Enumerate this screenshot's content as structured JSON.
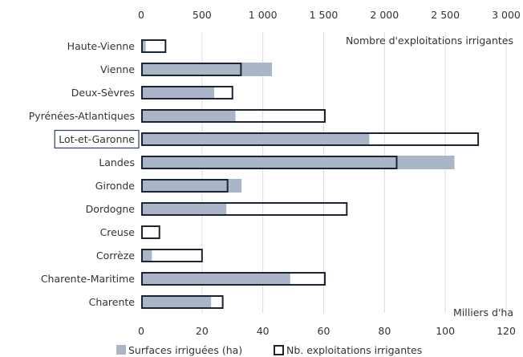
{
  "chart_data": {
    "type": "bar",
    "orientation": "horizontal",
    "categories": [
      "Haute-Vienne",
      "Vienne",
      "Deux-Sèvres",
      "Pyrénées-Atlantiques",
      "Lot-et-Garonne",
      "Landes",
      "Gironde",
      "Dordogne",
      "Creuse",
      "Corrèze",
      "Charente-Maritime",
      "Charente"
    ],
    "highlighted_category": "Lot-et-Garonne",
    "series": [
      {
        "name": "Surfaces irriguées (ha)",
        "axis": "bottom",
        "unit": "Milliers d'ha",
        "color": "#aab5c8",
        "values": [
          1.5,
          43,
          24,
          31,
          75,
          103,
          33,
          28,
          0,
          3.5,
          49,
          23
        ]
      },
      {
        "name": "Nb. exploitations irrigantes",
        "axis": "top",
        "color": "#1c2333",
        "values": [
          200,
          820,
          750,
          1510,
          2770,
          2100,
          710,
          1690,
          150,
          500,
          1510,
          670
        ]
      }
    ],
    "top_axis": {
      "label": "Nombre d'exploitations irrigantes",
      "min": 0,
      "max": 3000,
      "ticks": [
        0,
        500,
        1000,
        1500,
        2000,
        2500,
        3000
      ],
      "tick_labels": [
        "0",
        "500",
        "1 000",
        "1 500",
        "2 000",
        "2 500",
        "3 000"
      ]
    },
    "bottom_axis": {
      "label": "Milliers d'ha",
      "min": 0,
      "max": 120,
      "ticks": [
        0,
        20,
        40,
        60,
        80,
        100,
        120
      ],
      "tick_labels": [
        "0",
        "20",
        "40",
        "60",
        "80",
        "100",
        "120"
      ]
    },
    "grid": true,
    "legend_position": "bottom"
  }
}
